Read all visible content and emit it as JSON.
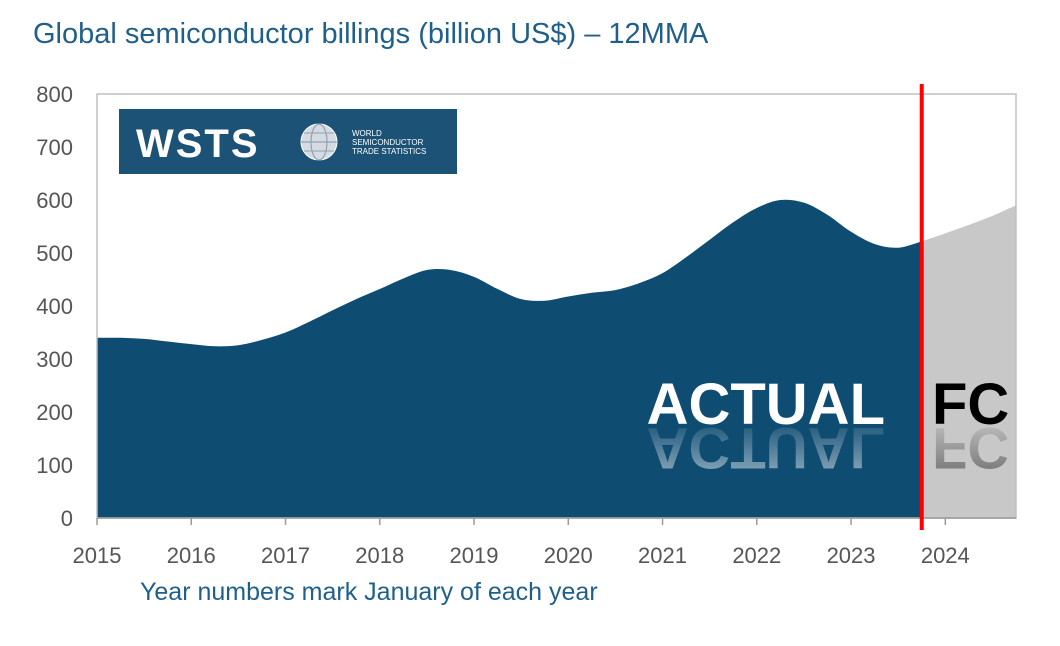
{
  "title": "Global semiconductor billings (billion US$) – 12MMA",
  "note": "Year numbers mark January of each year",
  "colors": {
    "actual": "#0f4c72",
    "forecast": "#c8c8c8",
    "divider": "#ff0000",
    "text_blue": "#1f5f8b"
  },
  "logo": {
    "main": "WSTS",
    "sub": [
      "WORLD",
      "SEMICONDUCTOR",
      "TRADE STATISTICS"
    ],
    "icon": "globe-icon"
  },
  "chart_data": {
    "type": "area",
    "xlim": [
      2015,
      2024.75
    ],
    "ylim": [
      0,
      800
    ],
    "yticks": [
      0,
      100,
      200,
      300,
      400,
      500,
      600,
      700,
      800
    ],
    "xticks": [
      2015,
      2016,
      2017,
      2018,
      2019,
      2020,
      2021,
      2022,
      2023,
      2024
    ],
    "divider_x": 2023.75,
    "region_labels": {
      "actual": "ACTUAL",
      "forecast": "FC"
    },
    "actual": {
      "x": [
        2015,
        2015.25,
        2015.5,
        2015.75,
        2016,
        2016.25,
        2016.5,
        2016.75,
        2017,
        2017.25,
        2017.5,
        2017.75,
        2018,
        2018.25,
        2018.5,
        2018.75,
        2019,
        2019.25,
        2019.5,
        2019.75,
        2020,
        2020.25,
        2020.5,
        2020.75,
        2021,
        2021.25,
        2021.5,
        2021.75,
        2022,
        2022.25,
        2022.5,
        2022.75,
        2023,
        2023.25,
        2023.5,
        2023.75
      ],
      "y": [
        340,
        340,
        338,
        333,
        328,
        324,
        326,
        336,
        350,
        370,
        392,
        413,
        432,
        452,
        468,
        468,
        455,
        432,
        413,
        410,
        418,
        425,
        430,
        443,
        462,
        492,
        525,
        558,
        585,
        600,
        595,
        572,
        540,
        517,
        510,
        522
      ]
    },
    "forecast": {
      "x": [
        2023.75,
        2024,
        2024.25,
        2024.5,
        2024.75
      ],
      "y": [
        522,
        537,
        553,
        570,
        590
      ]
    }
  }
}
